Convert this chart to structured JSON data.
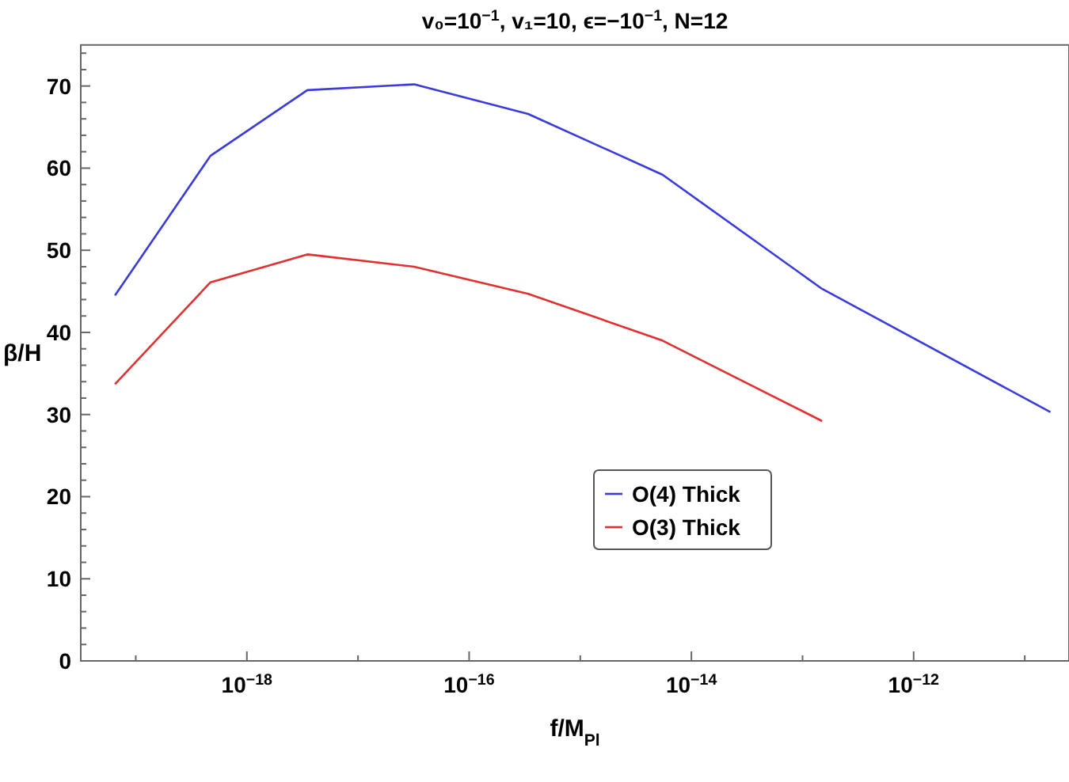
{
  "chart_data": {
    "type": "line",
    "title": "v₀=10$^{−1}$, v₁=10, ϵ=−10$^{−1}$, N=12",
    "xlabel": "f/M$_{Pl}$",
    "ylabel": "β/H",
    "log": "x",
    "xlim": [
      3.2e-20,
      2.5e-11
    ],
    "ylim": [
      0,
      75
    ],
    "xticks": [
      {
        "value": 1e-19,
        "label": null
      },
      {
        "value": 1e-18,
        "label": "10$^{−18}$"
      },
      {
        "value": 1e-17,
        "label": null
      },
      {
        "value": 1e-16,
        "label": "10$^{−16}$"
      },
      {
        "value": 1e-15,
        "label": null
      },
      {
        "value": 1e-14,
        "label": "10$^{−14}$"
      },
      {
        "value": 1e-13,
        "label": null
      },
      {
        "value": 1e-12,
        "label": "10$^{−12}$"
      },
      {
        "value": 1e-11,
        "label": null
      }
    ],
    "yticks": [
      0,
      {
        "value": 2,
        "label": null
      },
      {
        "value": 4,
        "label": null
      },
      {
        "value": 6,
        "label": null
      },
      {
        "value": 8,
        "label": null
      },
      10,
      {
        "value": 12,
        "label": null
      },
      {
        "value": 14,
        "label": null
      },
      {
        "value": 16,
        "label": null
      },
      {
        "value": 18,
        "label": null
      },
      20,
      {
        "value": 22,
        "label": null
      },
      {
        "value": 24,
        "label": null
      },
      {
        "value": 26,
        "label": null
      },
      {
        "value": 28,
        "label": null
      },
      30,
      {
        "value": 32,
        "label": null
      },
      {
        "value": 34,
        "label": null
      },
      {
        "value": 36,
        "label": null
      },
      {
        "value": 38,
        "label": null
      },
      40,
      {
        "value": 42,
        "label": null
      },
      {
        "value": 44,
        "label": null
      },
      {
        "value": 46,
        "label": null
      },
      {
        "value": 48,
        "label": null
      },
      50,
      {
        "value": 52,
        "label": null
      },
      {
        "value": 54,
        "label": null
      },
      {
        "value": 56,
        "label": null
      },
      {
        "value": 58,
        "label": null
      },
      60,
      {
        "value": 62,
        "label": null
      },
      {
        "value": 64,
        "label": null
      },
      {
        "value": 66,
        "label": null
      },
      {
        "value": 68,
        "label": null
      },
      70,
      {
        "value": 72,
        "label": null
      },
      {
        "value": 74,
        "label": null
      }
    ],
    "x": [
      6.5e-20,
      4.7e-19,
      3.5e-18,
      3.2e-17,
      3.4e-16,
      5.5e-15,
      1.5e-13,
      1.7e-11
    ],
    "legend": "bottom",
    "grid": false,
    "series": [
      {
        "name": "O(4) Thick",
        "color": "#3b3bdc",
        "values": [
          44.5,
          61.5,
          69.5,
          70.2,
          66.6,
          59.2,
          45.3,
          30.3
        ]
      },
      {
        "name": "O(3) Thick",
        "color": "#e03030",
        "values": [
          33.7,
          46.1,
          49.5,
          48.0,
          44.7,
          39.0,
          29.2,
          null
        ]
      }
    ]
  }
}
